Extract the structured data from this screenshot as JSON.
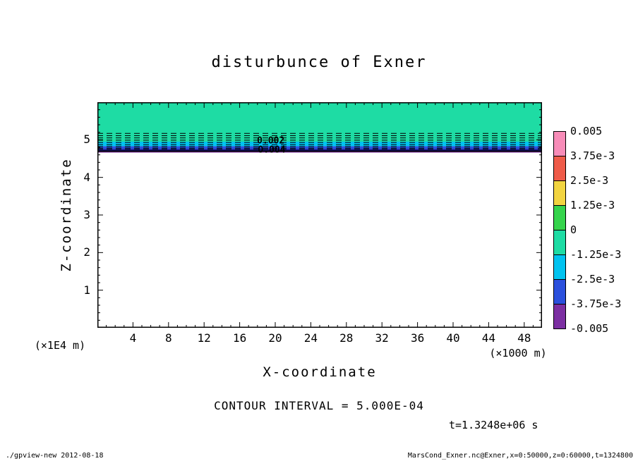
{
  "title": "disturbunce of Exner",
  "axes": {
    "x_label": "X-coordinate",
    "x_unit": "(×1000 m)",
    "y_label": "Z-coordinate",
    "y_unit": "(×1E4 m)"
  },
  "colorbar": {
    "labels": [
      "0.005",
      "3.75e-3",
      "2.5e-3",
      "1.25e-3",
      "0",
      "-1.25e-3",
      "-2.5e-3",
      "-3.75e-3",
      "-0.005"
    ],
    "colors": [
      "#f78cb8",
      "#ef5b49",
      "#f2d440",
      "#35d44c",
      "#1edca4",
      "#00c3f0",
      "#2b50dd",
      "#7c2fa2"
    ]
  },
  "notes": {
    "contour_interval": "CONTOUR INTERVAL = 5.000E-04",
    "time": "t=1.3248e+06 s"
  },
  "footer": {
    "left": "./gpview-new  2012-08-18",
    "right": "MarsCond_Exner.nc@Exner,x=0:50000,z=0:60000,t=1324800"
  },
  "chart_data": {
    "type": "heatmap",
    "title": "disturbunce of Exner",
    "xlabel": "X-coordinate",
    "x_unit_note": "(×1000 m)",
    "xlim": [
      0,
      50
    ],
    "x_ticks": [
      4,
      8,
      12,
      16,
      20,
      24,
      28,
      32,
      36,
      40,
      44,
      48
    ],
    "ylabel": "Z-coordinate",
    "y_unit_note": "(×1E4 m)",
    "ylim": [
      0,
      6
    ],
    "y_ticks": [
      1,
      2,
      3,
      4,
      5
    ],
    "contour_interval": 0.0005,
    "levels": [
      -0.005,
      -0.00375,
      -0.0025,
      -0.00125,
      0,
      0.00125,
      0.0025,
      0.00375,
      0.005
    ],
    "bands": [
      {
        "z_top": 6.0,
        "z_bottom": 4.95,
        "value_range": [
          -0.00125,
          0
        ],
        "color": "#1edca4"
      },
      {
        "z_top": 4.95,
        "z_bottom": 4.83,
        "value_range": [
          -0.0025,
          -0.00125
        ],
        "color": "#00c3f0"
      },
      {
        "z_top": 4.83,
        "z_bottom": 4.76,
        "value_range": [
          -0.00375,
          -0.0025
        ],
        "color": "#2b50dd"
      },
      {
        "z_top": 4.76,
        "z_bottom": 4.71,
        "value_range": [
          -0.005,
          -0.00375
        ],
        "color": "#191c9b"
      },
      {
        "z_top": 4.71,
        "z_bottom": 4.66,
        "value_range": [
          -0.005,
          -0.00375
        ],
        "color": "#7c2fa2"
      },
      {
        "z_top": 4.66,
        "z_bottom": 0.0,
        "value_range": [
          0,
          0
        ],
        "color": "#ffffff"
      }
    ],
    "dashed_contours_z": [
      5.17,
      5.11,
      5.05,
      4.99,
      4.93,
      4.87,
      4.82,
      4.78,
      4.75
    ],
    "solid_contour_z": 4.7,
    "contour_labels": [
      {
        "text": "0.002",
        "x": 19.5,
        "z": 4.9
      },
      {
        "text": "0.004",
        "x": 19.6,
        "z": 4.66
      }
    ]
  }
}
